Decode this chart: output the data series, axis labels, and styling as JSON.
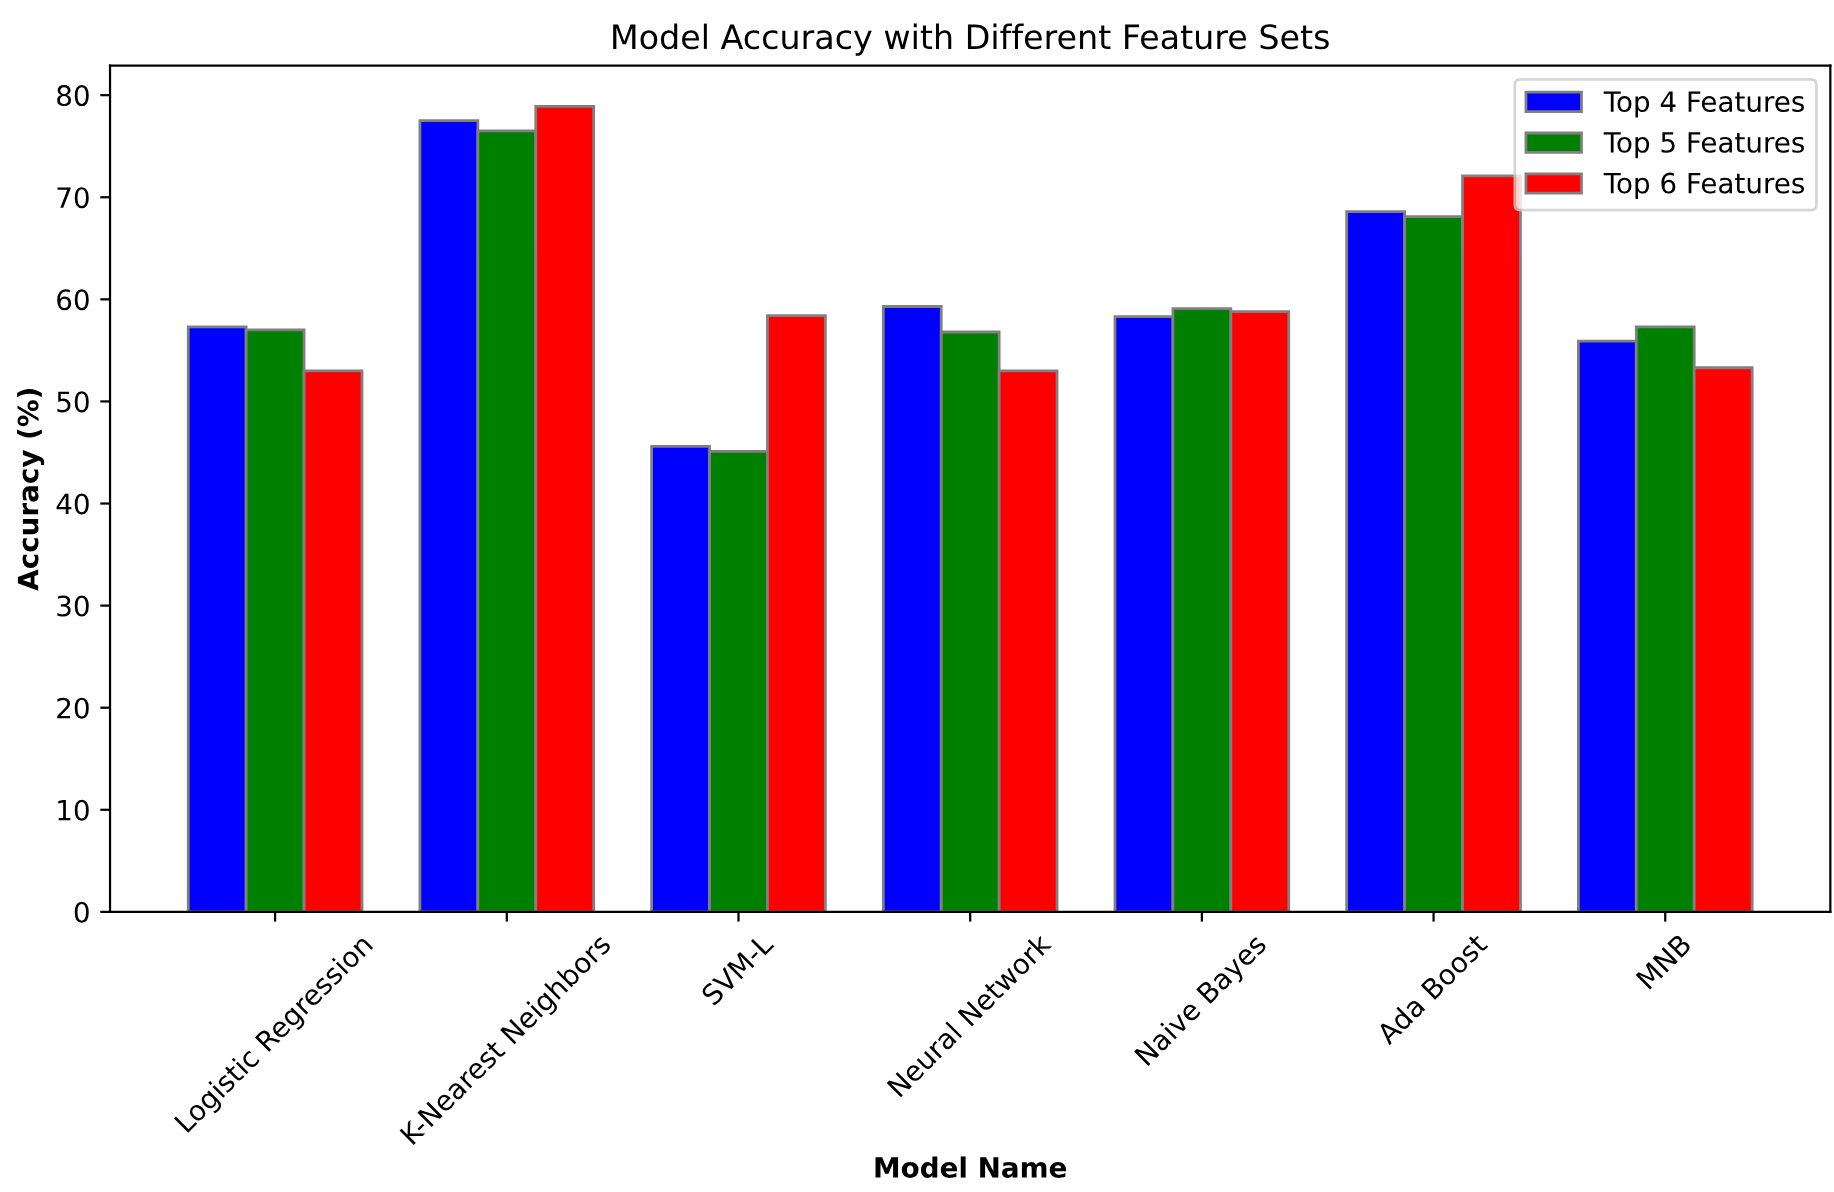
{
  "chart_data": {
    "type": "bar",
    "title": "Model Accuracy with Different Feature Sets",
    "xlabel": "Model Name",
    "ylabel": "Accuracy (%)",
    "categories": [
      "Logistic Regression",
      "K-Nearest Neighbors",
      "SVM-L",
      "Neural Network",
      "Naive Bayes",
      "Ada Boost",
      "MNB"
    ],
    "series": [
      {
        "name": "Top 4 Features",
        "color": "#0000ff",
        "values": [
          57.3,
          77.5,
          45.6,
          59.3,
          58.3,
          68.6,
          55.9
        ]
      },
      {
        "name": "Top 5 Features",
        "color": "#008000",
        "values": [
          57.0,
          76.5,
          45.1,
          56.8,
          59.1,
          68.1,
          57.3
        ]
      },
      {
        "name": "Top 6 Features",
        "color": "#ff0000",
        "values": [
          53.0,
          78.9,
          58.4,
          53.0,
          58.8,
          72.1,
          53.3
        ]
      }
    ],
    "ylim": [
      0,
      82.9
    ],
    "yticks": [
      0,
      10,
      20,
      30,
      40,
      50,
      60,
      70,
      80
    ],
    "grid": false,
    "legend": "top right"
  }
}
